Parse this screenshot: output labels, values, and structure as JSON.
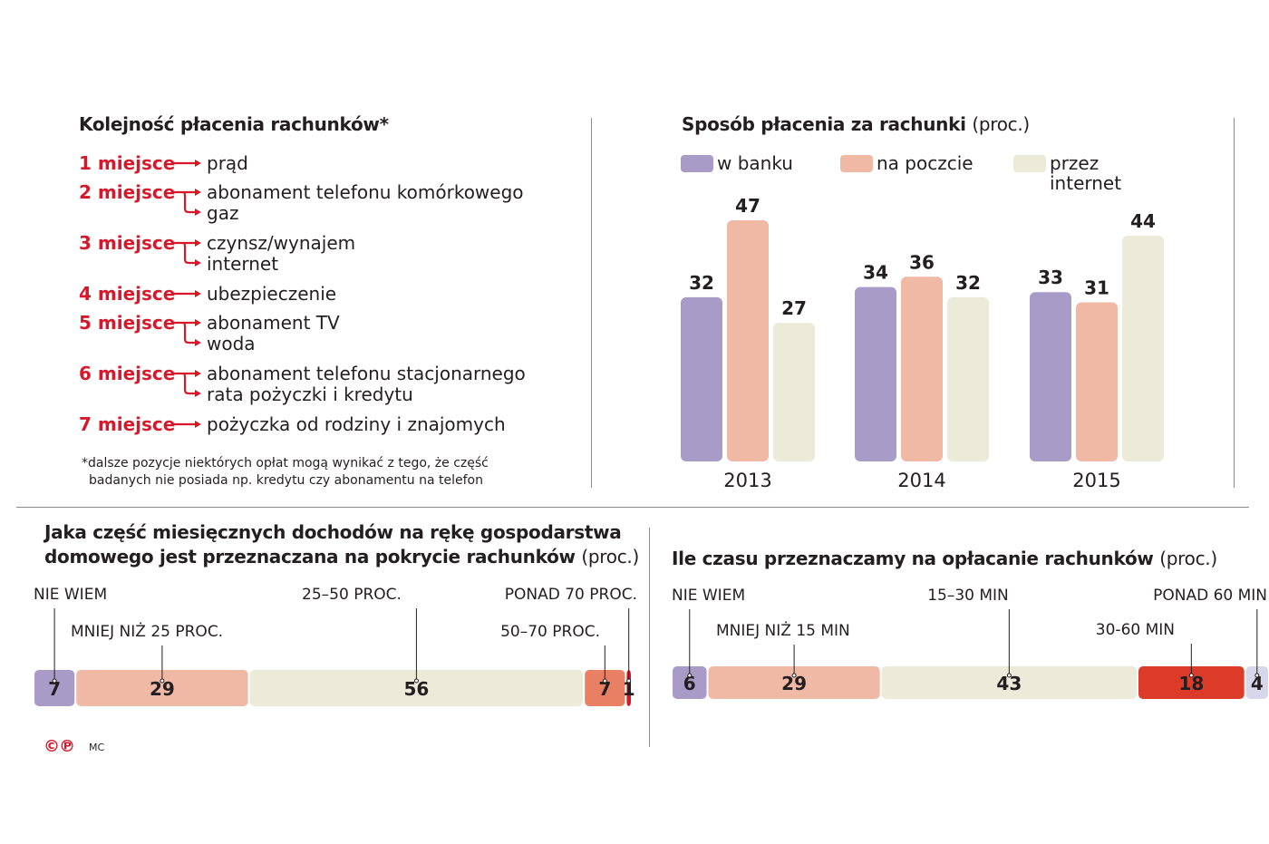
{
  "colors": {
    "red": "#d7182a",
    "purple": "#a99bc8",
    "salmon": "#f0b9a5",
    "beige": "#ecebd9",
    "orange": "#e97f63",
    "darkred": "#dd3b2a"
  },
  "ranking": {
    "title": "Kolejność płacenia rachunków*",
    "ranks": [
      {
        "label": "1 miejsce",
        "items": [
          "prąd"
        ]
      },
      {
        "label": "2 miejsce",
        "items": [
          "abonament telefonu komórkowego",
          "gaz"
        ]
      },
      {
        "label": "3 miejsce",
        "items": [
          "czynsz/wynajem",
          "internet"
        ]
      },
      {
        "label": "4 miejsce",
        "items": [
          "ubezpieczenie"
        ]
      },
      {
        "label": "5 miejsce",
        "items": [
          "abonament TV",
          "woda"
        ]
      },
      {
        "label": "6 miejsce",
        "items": [
          "abonament telefonu stacjonarnego",
          "rata pożyczki i kredytu"
        ]
      },
      {
        "label": "7 miejsce",
        "items": [
          "pożyczka od rodziny i znajomych"
        ]
      }
    ],
    "footnote_line1": "*dalsze pozycje niektórych opłat mogą wynikać z tego, że część",
    "footnote_line2": "badanych nie posiada np. kredytu czy abonamentu na telefon"
  },
  "chart_data": [
    {
      "type": "bar",
      "title": "Sposób płacenia za rachunki",
      "unit": "(proc.)",
      "categories": [
        "2013",
        "2014",
        "2015"
      ],
      "series": [
        {
          "name": "w banku",
          "color": "#a99bc8",
          "values": [
            32,
            34,
            33
          ]
        },
        {
          "name": "na poczcie",
          "color": "#f0b9a5",
          "values": [
            47,
            36,
            31
          ]
        },
        {
          "name": "przez internet",
          "color": "#ecebd9",
          "values": [
            27,
            32,
            44
          ]
        }
      ],
      "legend_line1": [
        "w banku",
        "na poczcie",
        "przez"
      ],
      "legend_line2": "internet",
      "ylim": [
        0,
        50
      ],
      "xlabel": "",
      "ylabel": ""
    },
    {
      "type": "bar",
      "stacked": true,
      "title_line1": "Jaka część miesięcznych dochodów na rękę gospodarstwa",
      "title_line2": "domowego jest przeznaczana na pokrycie rachunków",
      "unit": "(proc.)",
      "categories": [
        "NIE WIEM",
        "MNIEJ NIŻ 25 PROC.",
        "25–50 PROC.",
        "50–70 PROC.",
        "PONAD 70 PROC."
      ],
      "values": [
        7,
        29,
        56,
        7,
        1
      ],
      "colors": [
        "#a99bc8",
        "#f0b9a5",
        "#ecebd9",
        "#e97f63",
        "#d7182a"
      ]
    },
    {
      "type": "bar",
      "stacked": true,
      "title": "Ile czasu przeznaczamy na opłacanie rachunków",
      "unit": "(proc.)",
      "categories": [
        "NIE WIEM",
        "MNIEJ NIŻ 15 MIN",
        "15–30 MIN",
        "30-60 MIN",
        "PONAD 60 MIN"
      ],
      "values": [
        6,
        29,
        43,
        18,
        4
      ],
      "colors": [
        "#a99bc8",
        "#f0b9a5",
        "#ecebd9",
        "#dd3b2a",
        "#d8d6ea"
      ]
    }
  ],
  "logo": "©℗",
  "author": "MC"
}
